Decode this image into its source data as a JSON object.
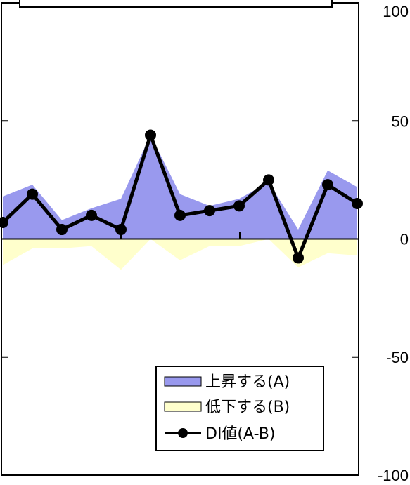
{
  "chart_data": {
    "type": "area",
    "x": [
      1,
      2,
      3,
      4,
      5,
      6,
      7,
      8,
      9,
      10,
      11,
      12,
      13
    ],
    "series": [
      {
        "name": "上昇する(A)",
        "kind": "area",
        "color": "#9999ee",
        "values": [
          18,
          23,
          8,
          13,
          17,
          44,
          19,
          14,
          17,
          24,
          4,
          29,
          22
        ]
      },
      {
        "name": "低下する(B)",
        "kind": "area",
        "color": "#ffffcc",
        "values": [
          -11,
          -4,
          -4,
          -3,
          -13,
          0,
          -9,
          -3,
          -3,
          0,
          -12,
          -6,
          -7
        ]
      },
      {
        "name": "DI値(A-B)",
        "kind": "line",
        "color": "#000000",
        "values": [
          7,
          19,
          4,
          10,
          4,
          44,
          10,
          12,
          14,
          25,
          -8,
          23,
          15
        ]
      }
    ],
    "yticks": [
      100,
      50,
      0,
      -50,
      -100
    ],
    "ylim": [
      -100,
      100
    ],
    "legend_position": "bottom-right"
  }
}
